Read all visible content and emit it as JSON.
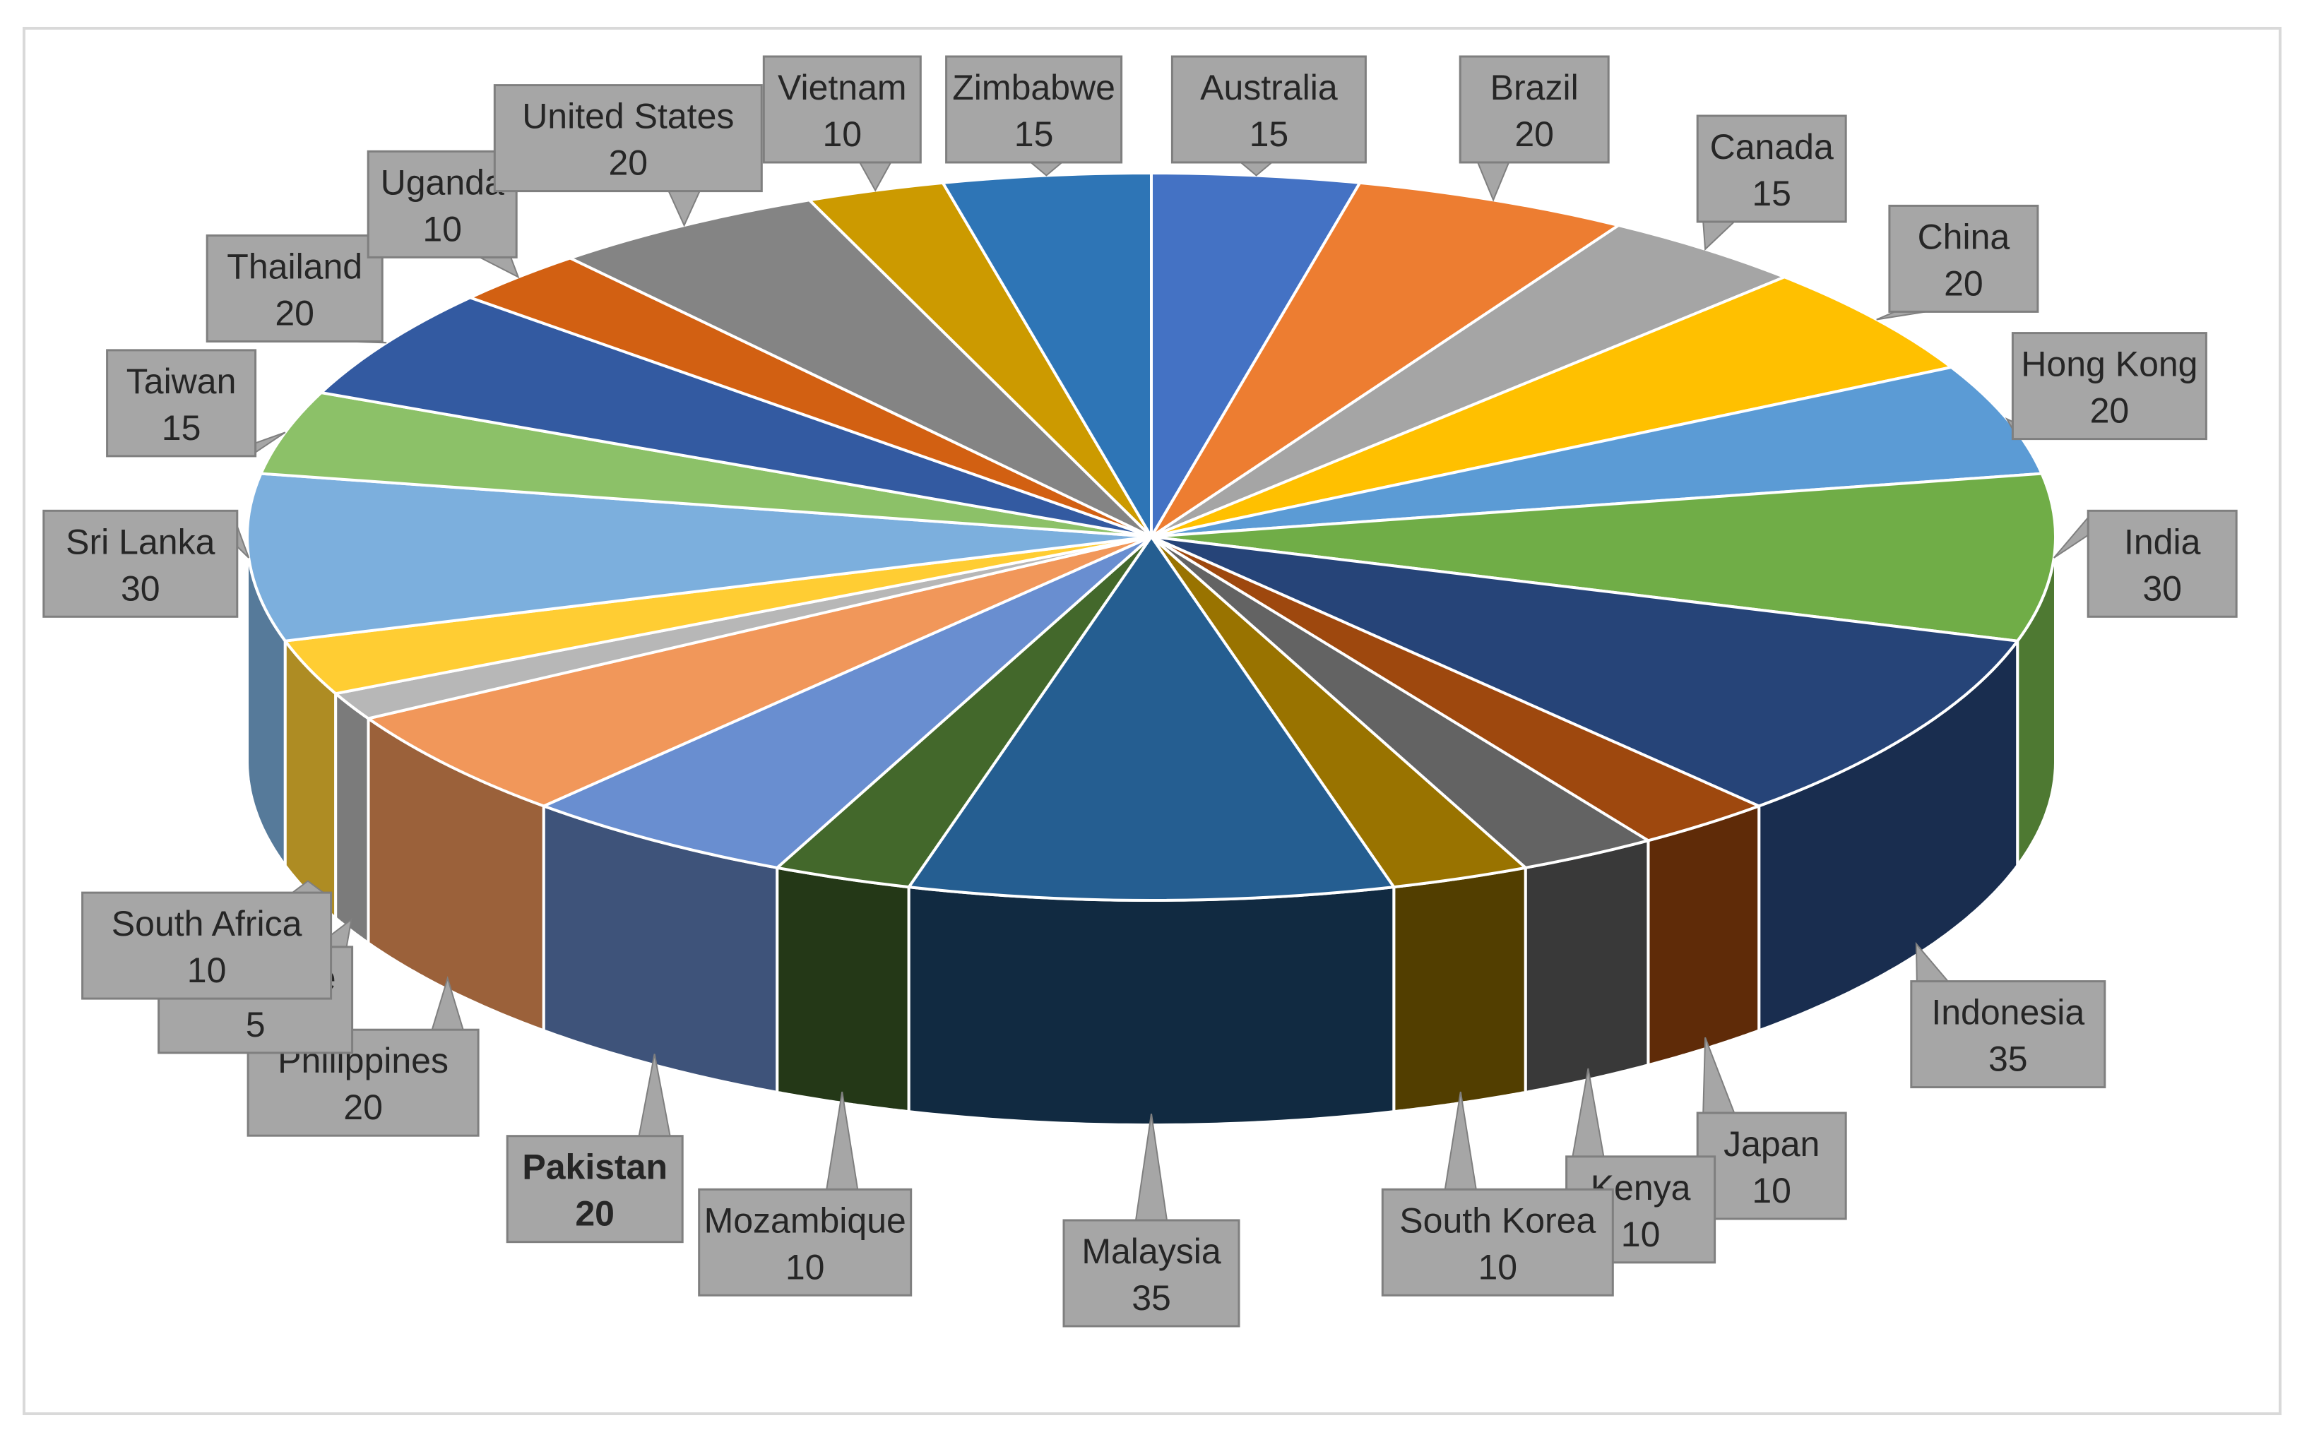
{
  "chart_data": {
    "type": "pie",
    "variant": "3d-exploded-style",
    "title": "",
    "categories": [
      "Australia",
      "Brazil",
      "Canada",
      "China",
      "Hong Kong",
      "India",
      "Indonesia",
      "Japan",
      "Kenya",
      "South Korea",
      "Malaysia",
      "Mozambique",
      "Pakistan",
      "Philippines",
      "Singapore",
      "South Africa",
      "Sri Lanka",
      "Taiwan",
      "Thailand",
      "Uganda",
      "United States",
      "Vietnam",
      "Zimbabwe"
    ],
    "values": [
      15,
      20,
      15,
      20,
      20,
      30,
      35,
      10,
      10,
      10,
      35,
      10,
      20,
      20,
      5,
      10,
      30,
      15,
      20,
      10,
      20,
      10,
      15
    ],
    "colors": [
      "#4472c4",
      "#ed7d31",
      "#a5a5a5",
      "#ffc000",
      "#5b9bd5",
      "#70ad47",
      "#264478",
      "#9e480e",
      "#636363",
      "#997300",
      "#255e91",
      "#43682b",
      "#698ed0",
      "#f1975a",
      "#b7b7b7",
      "#ffcd33",
      "#7cafdd",
      "#8cc168",
      "#335aa1",
      "#d26012",
      "#848484",
      "#cc9a00",
      "#2e75b6"
    ],
    "label_values": [
      "15",
      "20",
      "15",
      "20",
      "20",
      "30",
      "35",
      "10",
      "10",
      "10",
      "35",
      "10",
      "20",
      "20",
      "5",
      "10",
      "30",
      "15",
      "20",
      "10",
      "20",
      "10",
      "15"
    ],
    "bold_labels": [
      "Pakistan"
    ],
    "legend": "none",
    "data_labels": "callouts"
  }
}
